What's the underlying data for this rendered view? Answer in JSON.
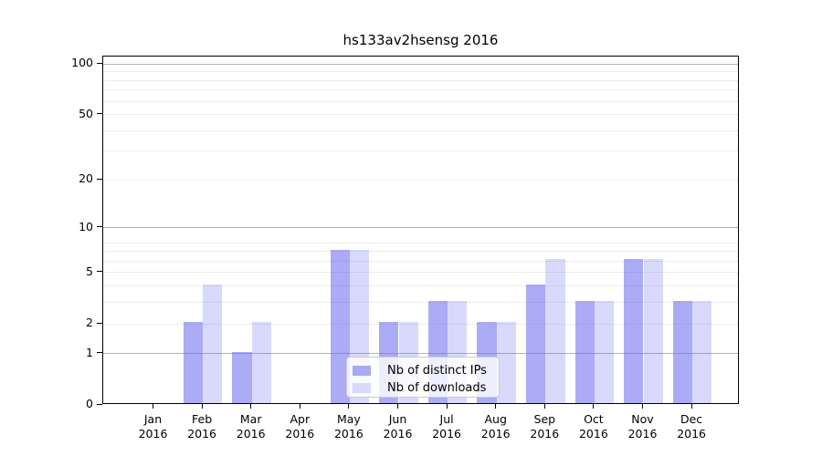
{
  "title": "hs133av2hsensg 2016",
  "chart_data": {
    "type": "bar",
    "title": "hs133av2hsensg 2016",
    "categories": [
      "Jan 2016",
      "Feb 2016",
      "Mar 2016",
      "Apr 2016",
      "May 2016",
      "Jun 2016",
      "Jul 2016",
      "Aug 2016",
      "Sep 2016",
      "Oct 2016",
      "Nov 2016",
      "Dec 2016"
    ],
    "x_axis": {
      "labels": [
        {
          "line1": "Jan",
          "line2": "2016"
        },
        {
          "line1": "Feb",
          "line2": "2016"
        },
        {
          "line1": "Mar",
          "line2": "2016"
        },
        {
          "line1": "Apr",
          "line2": "2016"
        },
        {
          "line1": "May",
          "line2": "2016"
        },
        {
          "line1": "Jun",
          "line2": "2016"
        },
        {
          "line1": "Jul",
          "line2": "2016"
        },
        {
          "line1": "Aug",
          "line2": "2016"
        },
        {
          "line1": "Sep",
          "line2": "2016"
        },
        {
          "line1": "Oct",
          "line2": "2016"
        },
        {
          "line1": "Nov",
          "line2": "2016"
        },
        {
          "line1": "Dec",
          "line2": "2016"
        }
      ]
    },
    "y_axis": {
      "scale": "log10(1+v)",
      "tick_labels": [
        "100",
        "50",
        "20",
        "10",
        "5",
        "2",
        "1",
        "0"
      ],
      "tick_values": [
        100,
        50,
        20,
        10,
        5,
        2,
        1,
        0
      ],
      "major_gridlines": [
        1,
        10,
        100
      ],
      "minor_gridlines": [
        2,
        3,
        4,
        5,
        6,
        7,
        8,
        20,
        30,
        40,
        50,
        60,
        70,
        80,
        90
      ],
      "range": [
        0,
        112
      ],
      "grid": true
    },
    "series": [
      {
        "name": "Nb of distinct IPs",
        "values": [
          0,
          2,
          1,
          0,
          7,
          2,
          3,
          2,
          4,
          3,
          6,
          3
        ]
      },
      {
        "name": "Nb of downloads",
        "values": [
          0,
          4,
          2,
          0,
          7,
          2,
          3,
          2,
          6,
          3,
          6,
          3
        ]
      }
    ],
    "legend": {
      "position": "lower center",
      "entries": [
        "Nb of distinct IPs",
        "Nb of downloads"
      ]
    }
  },
  "colors": {
    "bar_distinct_ips": "rgba(102,102,238,0.55)",
    "bar_downloads": "rgba(102,102,238,0.25)",
    "legend_swatch_distinct_ips": "#a9a9f4",
    "legend_swatch_downloads": "#d9d9fb",
    "grid_major": "#b3b3b3",
    "grid_minor": "#ececec",
    "axis": "#000000",
    "text": "#000000",
    "background": "#ffffff"
  }
}
